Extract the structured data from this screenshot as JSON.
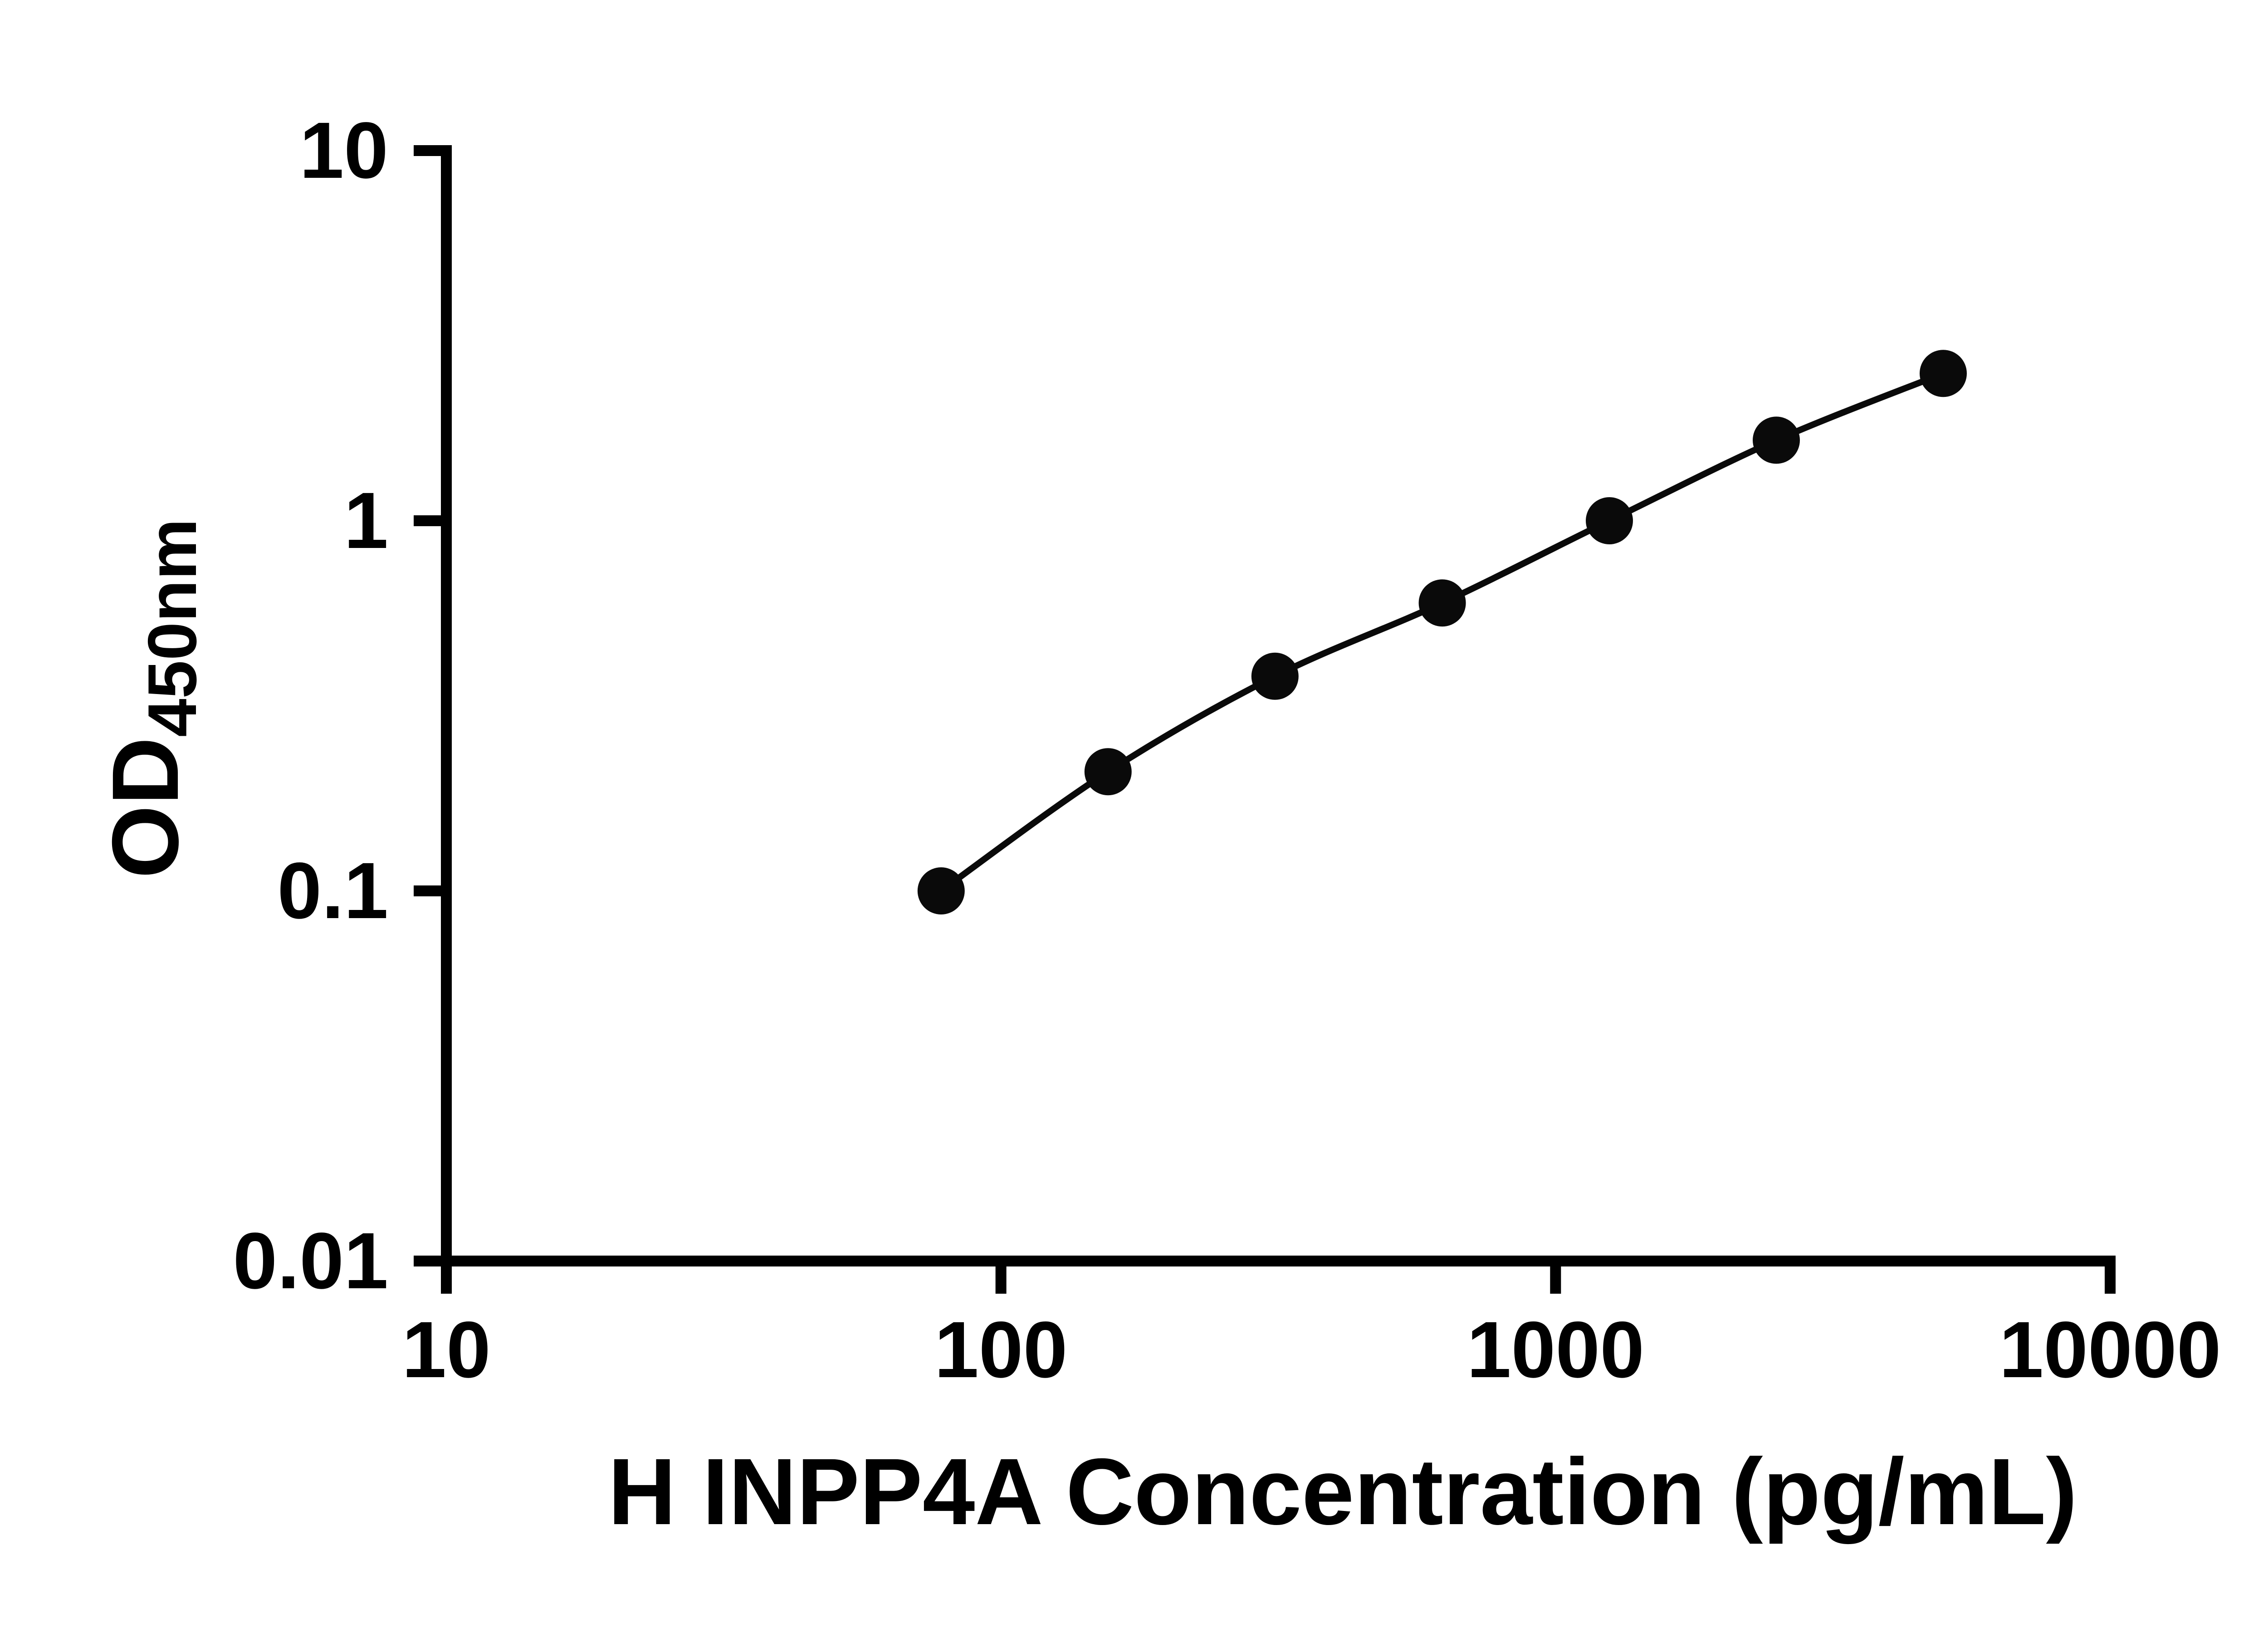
{
  "chart_data": {
    "type": "scatter",
    "subtype": "standard-curve-with-fit-line",
    "x": [
      78,
      156,
      312,
      625,
      1250,
      2500,
      5000
    ],
    "y": [
      0.1,
      0.21,
      0.38,
      0.6,
      1.0,
      1.65,
      2.5
    ],
    "x_scale": "log",
    "y_scale": "log",
    "xlim": [
      10,
      10000
    ],
    "ylim": [
      0.01,
      10
    ],
    "x_ticks": [
      10,
      100,
      1000,
      10000
    ],
    "x_tick_labels": [
      "10",
      "100",
      "1000",
      "10000"
    ],
    "y_ticks": [
      0.01,
      0.1,
      1,
      10
    ],
    "y_tick_labels": [
      "0.01",
      "0.1",
      "1",
      "10"
    ],
    "xlabel": "H INPP4A Concentration (pg/mL)",
    "ylabel_main": "OD",
    "ylabel_sub": "450nm",
    "grid": false,
    "legend": "none",
    "marker_shape": "circle",
    "marker_color": "#0a0a0a",
    "line_color": "#0a0a0a",
    "axis_color": "#000000",
    "background_color": "#ffffff"
  }
}
